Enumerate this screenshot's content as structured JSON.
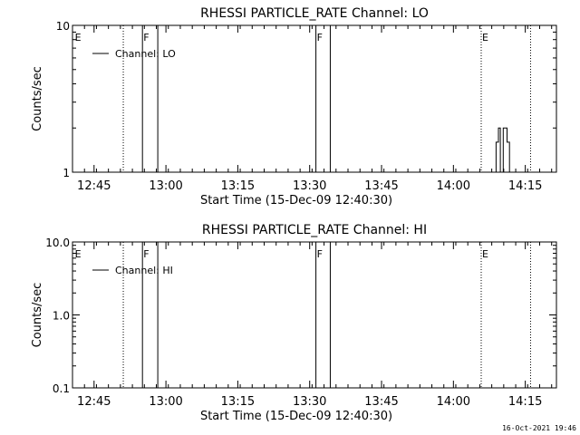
{
  "footer": {
    "timestamp": "16-Oct-2021 19:46"
  },
  "chart_data": [
    {
      "type": "line",
      "title": "RHESSI PARTICLE_RATE Channel: LO",
      "xlabel": "Start Time (15-Dec-09 12:40:30)",
      "ylabel": "Counts/sec",
      "y_scale": "log",
      "ylim": [
        1,
        10
      ],
      "y_ticks": [
        {
          "value": 1,
          "label": "1"
        },
        {
          "value": 10,
          "label": "10"
        }
      ],
      "xlim_minutes": [
        0,
        101
      ],
      "x_ticks": [
        {
          "minute": 4.5,
          "label": "12:45"
        },
        {
          "minute": 19.5,
          "label": "13:00"
        },
        {
          "minute": 34.5,
          "label": "13:15"
        },
        {
          "minute": 49.5,
          "label": "13:30"
        },
        {
          "minute": 64.5,
          "label": "13:45"
        },
        {
          "minute": 79.5,
          "label": "14:00"
        },
        {
          "minute": 94.5,
          "label": "14:15"
        }
      ],
      "legend": {
        "entry": "Channel: LO",
        "placement": "top-left"
      },
      "markers": [
        {
          "minute": 0.3,
          "label": "E",
          "style": "none"
        },
        {
          "minute": 10.6,
          "label": "",
          "style": "dotted"
        },
        {
          "minute": 14.6,
          "label": "F",
          "style": "solid"
        },
        {
          "minute": 17.8,
          "label": "",
          "style": "solid"
        },
        {
          "minute": 50.8,
          "label": "F",
          "style": "solid"
        },
        {
          "minute": 53.8,
          "label": "",
          "style": "solid"
        },
        {
          "minute": 85.3,
          "label": "E",
          "style": "dotted"
        },
        {
          "minute": 95.6,
          "label": "",
          "style": "dotted"
        }
      ],
      "series": [
        {
          "x": [
            88.4,
            88.4,
            88.9,
            88.9,
            89.3,
            89.3,
            89.9,
            89.9,
            90.7,
            90.7,
            91.2,
            91.2
          ],
          "y": [
            1,
            1.6,
            1.6,
            2,
            2,
            1,
            1,
            2,
            2,
            1.6,
            1.6,
            1
          ]
        }
      ]
    },
    {
      "type": "line",
      "title": "RHESSI PARTICLE_RATE Channel: HI",
      "xlabel": "Start Time (15-Dec-09 12:40:30)",
      "ylabel": "Counts/sec",
      "y_scale": "log",
      "ylim": [
        0.1,
        10
      ],
      "y_ticks": [
        {
          "value": 0.1,
          "label": "0.1"
        },
        {
          "value": 1,
          "label": "1.0"
        },
        {
          "value": 10,
          "label": "10.0"
        }
      ],
      "xlim_minutes": [
        0,
        101
      ],
      "x_ticks": [
        {
          "minute": 4.5,
          "label": "12:45"
        },
        {
          "minute": 19.5,
          "label": "13:00"
        },
        {
          "minute": 34.5,
          "label": "13:15"
        },
        {
          "minute": 49.5,
          "label": "13:30"
        },
        {
          "minute": 64.5,
          "label": "13:45"
        },
        {
          "minute": 79.5,
          "label": "14:00"
        },
        {
          "minute": 94.5,
          "label": "14:15"
        }
      ],
      "legend": {
        "entry": "Channel: HI",
        "placement": "top-left"
      },
      "markers": [
        {
          "minute": 0.3,
          "label": "E",
          "style": "none"
        },
        {
          "minute": 10.6,
          "label": "",
          "style": "dotted"
        },
        {
          "minute": 14.6,
          "label": "F",
          "style": "solid"
        },
        {
          "minute": 17.8,
          "label": "",
          "style": "solid"
        },
        {
          "minute": 50.8,
          "label": "F",
          "style": "solid"
        },
        {
          "minute": 53.8,
          "label": "",
          "style": "solid"
        },
        {
          "minute": 85.3,
          "label": "E",
          "style": "dotted"
        },
        {
          "minute": 95.6,
          "label": "",
          "style": "dotted"
        }
      ],
      "series": []
    }
  ]
}
